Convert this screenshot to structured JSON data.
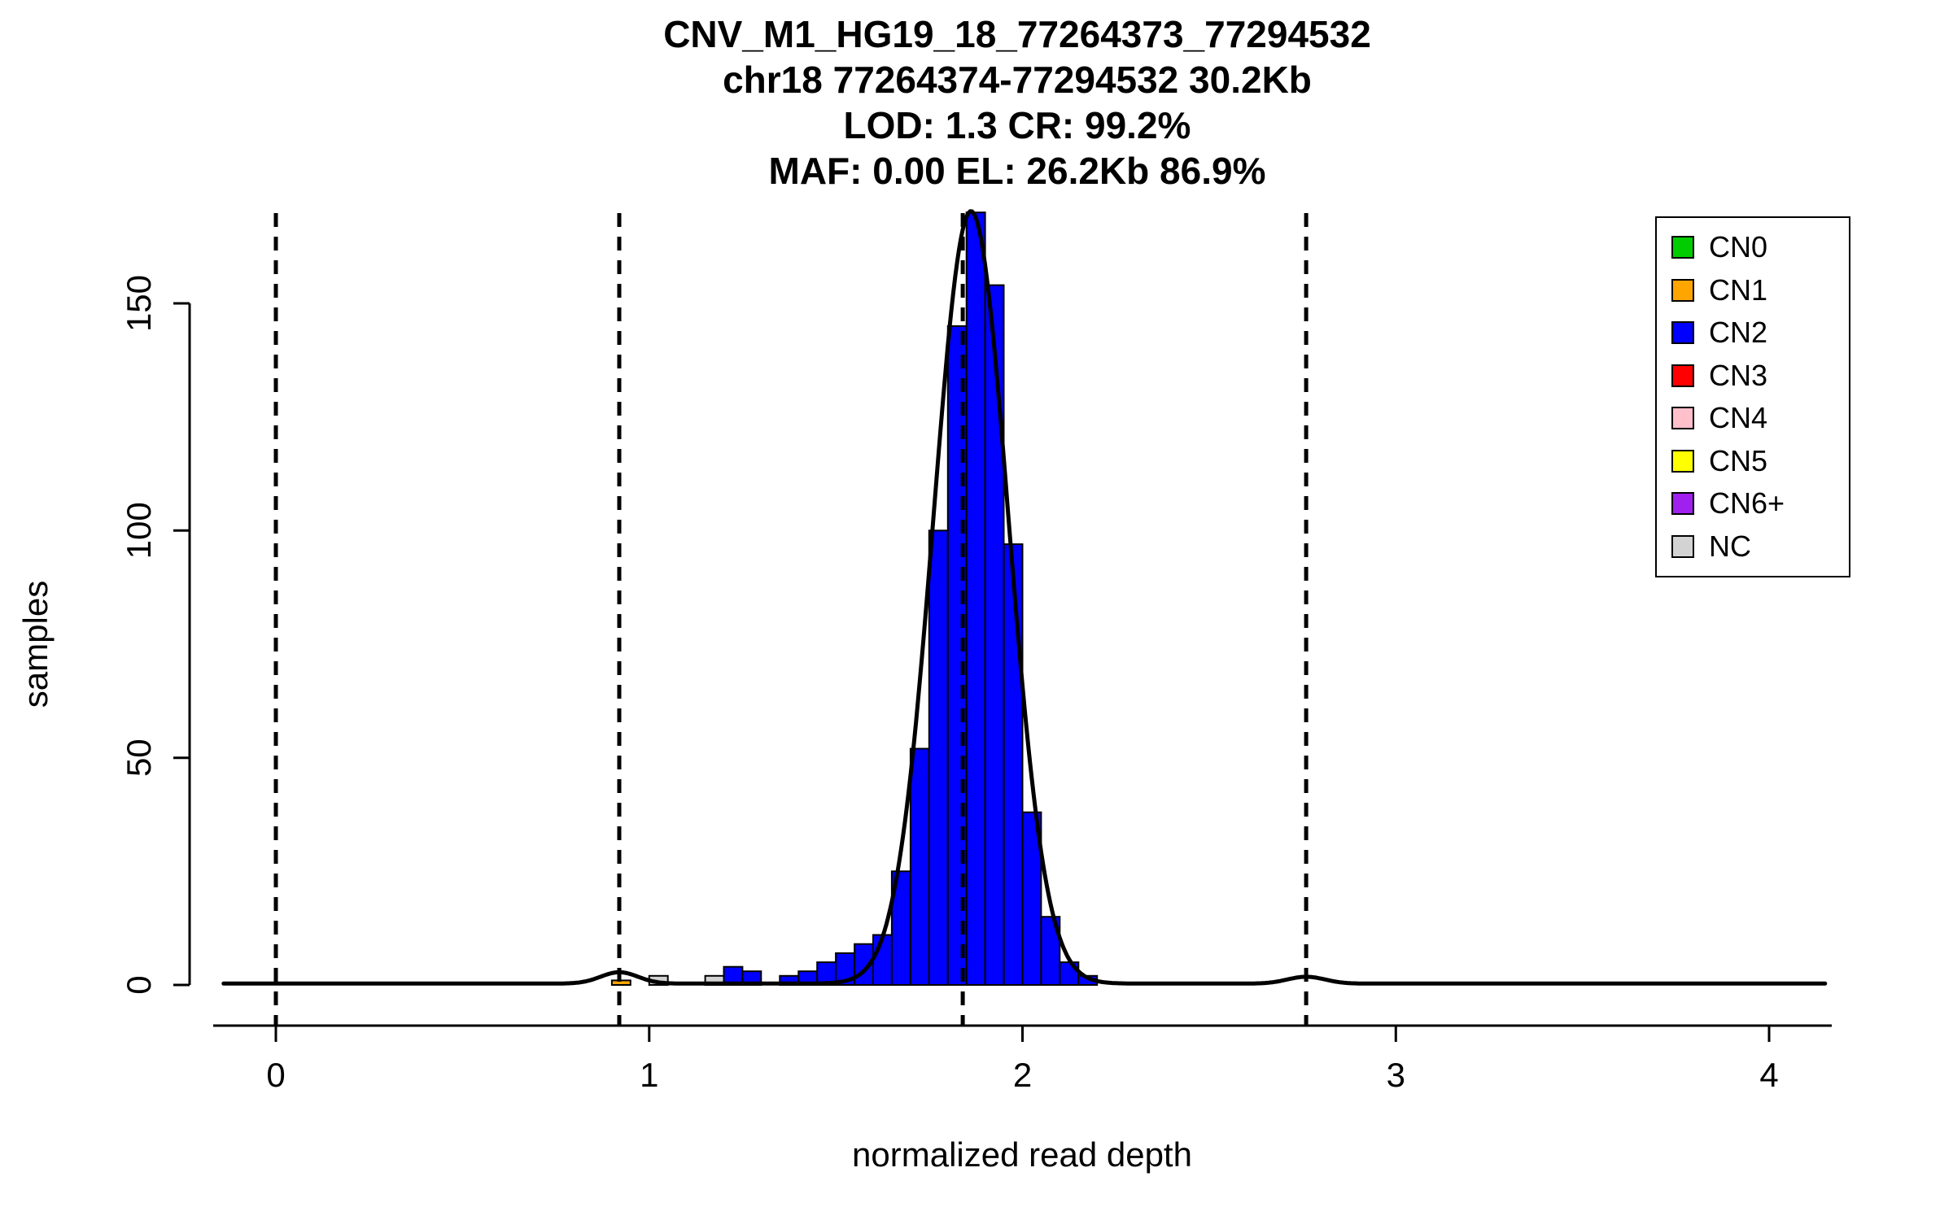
{
  "title_lines": [
    "CNV_M1_HG19_18_77264373_77294532",
    "chr18 77264374-77294532 30.2Kb",
    "LOD: 1.3 CR: 99.2%",
    "MAF: 0.00 EL: 26.2Kb 86.9%"
  ],
  "axes": {
    "x_label": "normalized read depth",
    "y_label": "samples",
    "x_ticks": [
      0,
      1,
      2,
      3,
      4
    ],
    "y_ticks": [
      0,
      50,
      100,
      150
    ]
  },
  "legend": {
    "items": [
      {
        "label": "CN0",
        "key": "CN0"
      },
      {
        "label": "CN1",
        "key": "CN1"
      },
      {
        "label": "CN2",
        "key": "CN2"
      },
      {
        "label": "CN3",
        "key": "CN3"
      },
      {
        "label": "CN4",
        "key": "CN4"
      },
      {
        "label": "CN5",
        "key": "CN5"
      },
      {
        "label": "CN6+",
        "key": "CN6+"
      },
      {
        "label": "NC",
        "key": "NC"
      }
    ]
  },
  "chart_data": {
    "type": "bar",
    "title": "CNV_M1_HG19_18_77264373_77294532 / chr18 77264374-77294532 30.2Kb / LOD: 1.3 CR: 99.2% / MAF: 0.00 EL: 26.2Kb 86.9%",
    "xlabel": "normalized read depth",
    "ylabel": "samples",
    "xlim": [
      -0.17,
      4.17
    ],
    "ylim": [
      0,
      172
    ],
    "grid": false,
    "legend_position": "top-right",
    "bin_width": 0.05,
    "bins": [
      {
        "x": 0.9,
        "h": 1,
        "cn": "CN1"
      },
      {
        "x": 1.0,
        "h": 2,
        "cn": "NC"
      },
      {
        "x": 1.15,
        "h": 2,
        "cn": "NC"
      },
      {
        "x": 1.2,
        "h": 4,
        "cn": "CN2"
      },
      {
        "x": 1.25,
        "h": 3,
        "cn": "CN2"
      },
      {
        "x": 1.35,
        "h": 2,
        "cn": "CN2"
      },
      {
        "x": 1.4,
        "h": 3,
        "cn": "CN2"
      },
      {
        "x": 1.45,
        "h": 5,
        "cn": "CN2"
      },
      {
        "x": 1.5,
        "h": 7,
        "cn": "CN2"
      },
      {
        "x": 1.55,
        "h": 9,
        "cn": "CN2"
      },
      {
        "x": 1.6,
        "h": 11,
        "cn": "CN2"
      },
      {
        "x": 1.65,
        "h": 25,
        "cn": "CN2"
      },
      {
        "x": 1.7,
        "h": 52,
        "cn": "CN2"
      },
      {
        "x": 1.75,
        "h": 100,
        "cn": "CN2"
      },
      {
        "x": 1.8,
        "h": 145,
        "cn": "CN2"
      },
      {
        "x": 1.85,
        "h": 170,
        "cn": "CN2"
      },
      {
        "x": 1.9,
        "h": 154,
        "cn": "CN2"
      },
      {
        "x": 1.95,
        "h": 97,
        "cn": "CN2"
      },
      {
        "x": 2.0,
        "h": 38,
        "cn": "CN2"
      },
      {
        "x": 2.05,
        "h": 15,
        "cn": "CN2"
      },
      {
        "x": 2.1,
        "h": 5,
        "cn": "CN2"
      },
      {
        "x": 2.15,
        "h": 2,
        "cn": "CN2"
      }
    ],
    "dashed_lines_x": [
      0,
      0.92,
      1.84,
      2.76
    ],
    "curve": {
      "domain": [
        -0.14,
        4.15
      ],
      "baseline": 0.3,
      "gaussians": [
        {
          "mean": 1.862,
          "sd": 0.1,
          "amplitude": 170
        },
        {
          "mean": 0.92,
          "sd": 0.05,
          "amplitude": 2.5
        },
        {
          "mean": 2.76,
          "sd": 0.05,
          "amplitude": 1.5
        }
      ]
    },
    "colors": {
      "CN0": "#00cc00",
      "CN1": "#ffa500",
      "CN2": "#0000ff",
      "CN3": "#ff0000",
      "CN4": "#ffc0cb",
      "CN5": "#ffff00",
      "CN6+": "#a020f0",
      "NC": "#d3d3d3"
    }
  }
}
